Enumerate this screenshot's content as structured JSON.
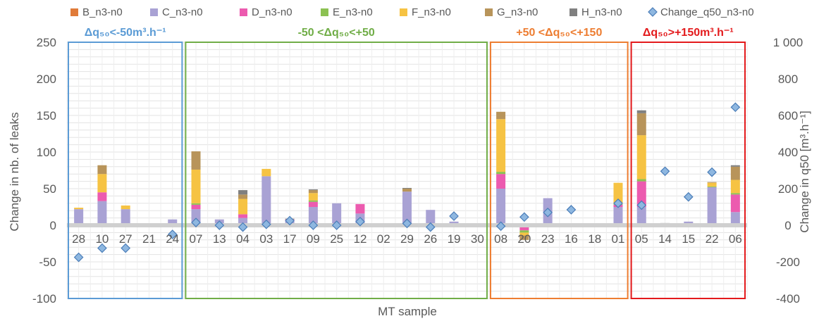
{
  "chart_data": {
    "type": "bar",
    "xlabel": "MT sample",
    "ylabel": "Change in nb. of leaks",
    "y2label": "Change in q50 [m³.h⁻¹]",
    "ylim": [
      -100,
      250
    ],
    "y2lim": [
      -400,
      1000
    ],
    "yticks": [
      "-100",
      "-50",
      "0",
      "50",
      "100",
      "150",
      "200",
      "250"
    ],
    "y2ticks": [
      "-400",
      "-200",
      "0",
      "200",
      "400",
      "600",
      "800",
      "1 000"
    ],
    "grid": true,
    "legend_position": "top",
    "categories": [
      "28",
      "10",
      "27",
      "21",
      "24",
      "07",
      "13",
      "04",
      "03",
      "17",
      "09",
      "25",
      "12",
      "02",
      "29",
      "26",
      "19",
      "30",
      "08",
      "20",
      "23",
      "16",
      "18",
      "01",
      "05",
      "14",
      "15",
      "22",
      "06"
    ],
    "series": [
      {
        "name": "B_n3-n0",
        "color": "#E07B39",
        "values": [
          0,
          0,
          0,
          0,
          0,
          0,
          0,
          0,
          0,
          0,
          0,
          0,
          0,
          0,
          0,
          0,
          0,
          0,
          0,
          0,
          0,
          0,
          0,
          0,
          0,
          0,
          0,
          0,
          0
        ]
      },
      {
        "name": "C_n3-n0",
        "color": "#A9A2D4",
        "values": [
          22,
          33,
          22,
          0,
          8,
          22,
          8,
          10,
          67,
          7,
          25,
          30,
          16,
          0,
          46,
          21,
          5,
          0,
          50,
          0,
          37,
          0,
          0,
          25,
          25,
          -2,
          5,
          52,
          18
        ]
      },
      {
        "name": "D_n3-n0",
        "color": "#EC5BAF",
        "values": [
          0,
          12,
          0,
          0,
          0,
          6,
          0,
          5,
          0,
          1,
          7,
          0,
          13,
          0,
          0,
          0,
          0,
          0,
          20,
          -7,
          0,
          0,
          0,
          3,
          35,
          0,
          0,
          0,
          24
        ]
      },
      {
        "name": "E_n3-n0",
        "color": "#8CC152",
        "values": [
          0,
          0,
          0,
          0,
          0,
          2,
          0,
          0,
          0,
          0,
          2,
          0,
          0,
          0,
          0,
          0,
          0,
          0,
          3,
          -3,
          0,
          0,
          0,
          1,
          3,
          0,
          0,
          1,
          2
        ]
      },
      {
        "name": "F_n3-n0",
        "color": "#F6C343",
        "values": [
          2,
          25,
          5,
          0,
          0,
          46,
          0,
          21,
          10,
          0,
          10,
          0,
          0,
          0,
          0,
          0,
          0,
          0,
          72,
          -4,
          0,
          0,
          0,
          29,
          60,
          0,
          0,
          5,
          18
        ]
      },
      {
        "name": "G_n3-n0",
        "color": "#B8945A",
        "values": [
          0,
          12,
          0,
          0,
          0,
          25,
          0,
          6,
          0,
          0,
          4,
          0,
          0,
          0,
          4,
          0,
          0,
          0,
          10,
          -6,
          0,
          0,
          0,
          0,
          30,
          0,
          0,
          1,
          18
        ]
      },
      {
        "name": "H_n3-n0",
        "color": "#808080",
        "values": [
          0,
          0,
          0,
          0,
          0,
          0,
          0,
          6,
          0,
          1,
          1,
          0,
          0,
          0,
          1,
          0,
          0,
          0,
          0,
          0,
          0,
          0,
          0,
          0,
          4,
          3,
          0,
          0,
          2
        ]
      },
      {
        "name": "Change_q50_n3-n0",
        "color": "#8EB7E0",
        "axis": "secondary",
        "values": [
          -175,
          -125,
          -125,
          null,
          -50,
          15,
          0,
          -10,
          5,
          25,
          0,
          0,
          20,
          null,
          10,
          -10,
          50,
          null,
          -5,
          45,
          70,
          85,
          null,
          120,
          110,
          295,
          155,
          290,
          645
        ]
      }
    ],
    "groups": [
      {
        "label": "Δq₅₀<-50m³.h⁻¹",
        "color": "#5B9BD5",
        "from": 0,
        "to": 4
      },
      {
        "label": "-50 <Δq₅₀<+50",
        "color": "#70AD47",
        "from": 5,
        "to": 17
      },
      {
        "label": "+50 <Δq₅₀<+150",
        "color": "#ED7D31",
        "from": 18,
        "to": 23
      },
      {
        "label": "Δq₅₀>+150m³.h⁻¹",
        "color": "#E31A1C",
        "from": 24,
        "to": 28
      }
    ]
  }
}
